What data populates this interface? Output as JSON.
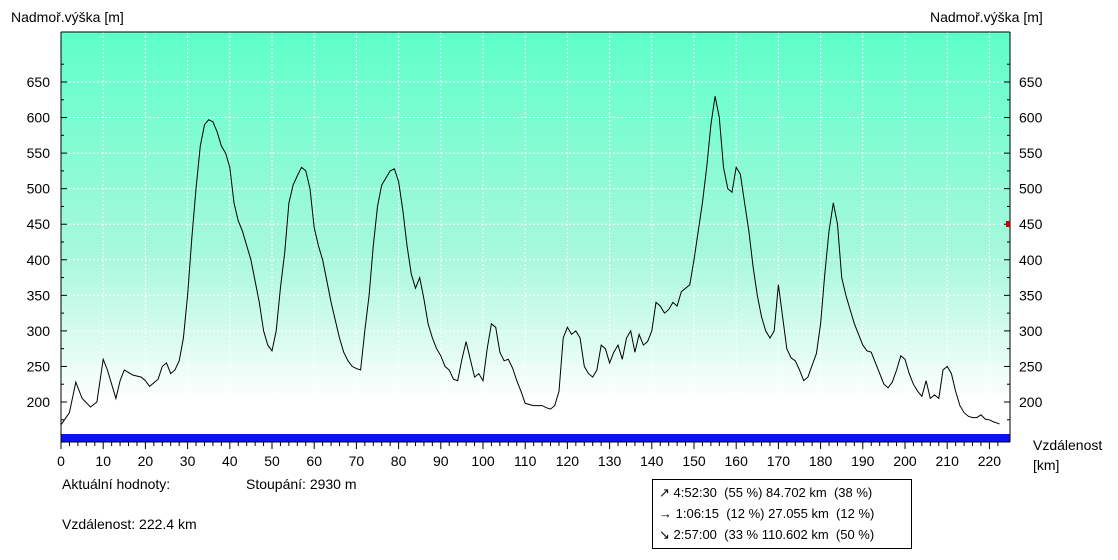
{
  "chart_data": {
    "type": "area",
    "ylabel_left": "Nadmoř.výška [m]",
    "ylabel_right": "Nadmoř.výška [m]",
    "xlabel": "Vzdálenost",
    "xunit": "[km]",
    "xlim": [
      0,
      222.4
    ],
    "ylim": [
      165,
      660
    ],
    "xticks": [
      0,
      10,
      20,
      30,
      40,
      50,
      60,
      70,
      80,
      90,
      100,
      110,
      120,
      130,
      140,
      150,
      160,
      170,
      180,
      190,
      200,
      210,
      220
    ],
    "yticks": [
      200,
      250,
      300,
      350,
      400,
      450,
      500,
      550,
      600,
      650
    ],
    "grid": true,
    "background_gradient": [
      "#5effc8",
      "#ffffff"
    ],
    "baseline_color": "#0a14f0",
    "series": [
      {
        "points": [
          [
            0,
            168
          ],
          [
            2,
            185
          ],
          [
            3.5,
            228
          ],
          [
            5,
            205
          ],
          [
            7,
            193
          ],
          [
            8.5,
            200
          ],
          [
            10,
            260
          ],
          [
            11,
            245
          ],
          [
            13,
            205
          ],
          [
            14,
            230
          ],
          [
            15,
            245
          ],
          [
            17,
            238
          ],
          [
            19,
            235
          ],
          [
            20,
            230
          ],
          [
            21,
            222
          ],
          [
            23,
            232
          ],
          [
            24,
            250
          ],
          [
            25,
            255
          ],
          [
            26,
            240
          ],
          [
            27,
            245
          ],
          [
            28,
            258
          ],
          [
            29,
            290
          ],
          [
            30,
            350
          ],
          [
            31,
            430
          ],
          [
            32,
            500
          ],
          [
            33,
            560
          ],
          [
            34,
            590
          ],
          [
            35,
            597
          ],
          [
            36,
            594
          ],
          [
            37,
            580
          ],
          [
            38,
            560
          ],
          [
            39,
            550
          ],
          [
            40,
            530
          ],
          [
            41,
            480
          ],
          [
            42,
            455
          ],
          [
            43,
            440
          ],
          [
            44,
            420
          ],
          [
            45,
            400
          ],
          [
            46,
            370
          ],
          [
            47,
            340
          ],
          [
            48,
            300
          ],
          [
            49,
            280
          ],
          [
            50,
            272
          ],
          [
            51,
            300
          ],
          [
            52,
            360
          ],
          [
            53,
            410
          ],
          [
            54,
            480
          ],
          [
            55,
            505
          ],
          [
            56,
            518
          ],
          [
            57,
            530
          ],
          [
            58,
            525
          ],
          [
            59,
            500
          ],
          [
            60,
            445
          ],
          [
            61,
            420
          ],
          [
            62,
            400
          ],
          [
            63,
            370
          ],
          [
            64,
            340
          ],
          [
            65,
            315
          ],
          [
            66,
            290
          ],
          [
            67,
            270
          ],
          [
            68,
            258
          ],
          [
            69,
            250
          ],
          [
            70,
            247
          ],
          [
            71,
            245
          ],
          [
            72,
            300
          ],
          [
            73,
            350
          ],
          [
            74,
            420
          ],
          [
            75,
            475
          ],
          [
            76,
            505
          ],
          [
            77,
            515
          ],
          [
            78,
            525
          ],
          [
            79,
            528
          ],
          [
            80,
            510
          ],
          [
            81,
            470
          ],
          [
            82,
            420
          ],
          [
            83,
            380
          ],
          [
            84,
            360
          ],
          [
            85,
            375
          ],
          [
            86,
            345
          ],
          [
            87,
            310
          ],
          [
            88,
            290
          ],
          [
            89,
            275
          ],
          [
            90,
            265
          ],
          [
            91,
            250
          ],
          [
            92,
            245
          ],
          [
            93,
            232
          ],
          [
            94,
            230
          ],
          [
            95,
            260
          ],
          [
            96,
            285
          ],
          [
            97,
            260
          ],
          [
            98,
            235
          ],
          [
            99,
            240
          ],
          [
            100,
            230
          ],
          [
            101,
            275
          ],
          [
            102,
            310
          ],
          [
            103,
            305
          ],
          [
            104,
            270
          ],
          [
            105,
            258
          ],
          [
            106,
            260
          ],
          [
            107,
            248
          ],
          [
            108,
            230
          ],
          [
            109,
            215
          ],
          [
            110,
            198
          ],
          [
            112,
            195
          ],
          [
            114,
            195
          ],
          [
            115,
            192
          ],
          [
            116,
            190
          ],
          [
            117,
            195
          ],
          [
            118,
            215
          ],
          [
            119,
            290
          ],
          [
            120,
            305
          ],
          [
            121,
            295
          ],
          [
            122,
            300
          ],
          [
            123,
            290
          ],
          [
            124,
            250
          ],
          [
            125,
            240
          ],
          [
            126,
            235
          ],
          [
            127,
            245
          ],
          [
            128,
            280
          ],
          [
            129,
            275
          ],
          [
            130,
            255
          ],
          [
            131,
            270
          ],
          [
            132,
            280
          ],
          [
            133,
            260
          ],
          [
            134,
            290
          ],
          [
            135,
            300
          ],
          [
            136,
            270
          ],
          [
            137,
            295
          ],
          [
            138,
            280
          ],
          [
            139,
            285
          ],
          [
            140,
            300
          ],
          [
            141,
            340
          ],
          [
            142,
            335
          ],
          [
            143,
            325
          ],
          [
            144,
            330
          ],
          [
            145,
            340
          ],
          [
            146,
            335
          ],
          [
            147,
            355
          ],
          [
            148,
            360
          ],
          [
            149,
            365
          ],
          [
            150,
            400
          ],
          [
            151,
            440
          ],
          [
            152,
            480
          ],
          [
            153,
            530
          ],
          [
            154,
            590
          ],
          [
            155,
            630
          ],
          [
            156,
            600
          ],
          [
            157,
            530
          ],
          [
            158,
            500
          ],
          [
            159,
            495
          ],
          [
            160,
            530
          ],
          [
            161,
            520
          ],
          [
            162,
            480
          ],
          [
            163,
            440
          ],
          [
            164,
            390
          ],
          [
            165,
            350
          ],
          [
            166,
            320
          ],
          [
            167,
            300
          ],
          [
            168,
            290
          ],
          [
            169,
            300
          ],
          [
            170,
            365
          ],
          [
            171,
            320
          ],
          [
            172,
            275
          ],
          [
            173,
            262
          ],
          [
            174,
            258
          ],
          [
            175,
            245
          ],
          [
            176,
            230
          ],
          [
            177,
            235
          ],
          [
            178,
            252
          ],
          [
            179,
            268
          ],
          [
            180,
            310
          ],
          [
            181,
            380
          ],
          [
            182,
            440
          ],
          [
            183,
            480
          ],
          [
            184,
            450
          ],
          [
            185,
            375
          ],
          [
            186,
            350
          ],
          [
            187,
            330
          ],
          [
            188,
            310
          ],
          [
            189,
            295
          ],
          [
            190,
            280
          ],
          [
            191,
            272
          ],
          [
            192,
            270
          ],
          [
            193,
            255
          ],
          [
            194,
            240
          ],
          [
            195,
            225
          ],
          [
            196,
            220
          ],
          [
            197,
            228
          ],
          [
            198,
            245
          ],
          [
            199,
            265
          ],
          [
            200,
            260
          ],
          [
            201,
            240
          ],
          [
            202,
            225
          ],
          [
            203,
            215
          ],
          [
            204,
            208
          ],
          [
            205,
            230
          ],
          [
            206,
            205
          ],
          [
            207,
            210
          ],
          [
            208,
            205
          ],
          [
            209,
            245
          ],
          [
            210,
            250
          ],
          [
            211,
            240
          ],
          [
            212,
            215
          ],
          [
            213,
            195
          ],
          [
            214,
            185
          ],
          [
            215,
            180
          ],
          [
            216,
            178
          ],
          [
            217,
            178
          ],
          [
            218,
            182
          ],
          [
            219,
            176
          ],
          [
            220,
            175
          ],
          [
            221,
            172
          ],
          [
            222,
            170
          ],
          [
            222.4,
            169
          ]
        ]
      }
    ]
  },
  "info": {
    "current_label": "Aktuální hodnoty:",
    "ascent_label": "Stoupání: 2930 m",
    "distance_label": "Vzdálenost: 222.4 km"
  },
  "stats": [
    {
      "icon": "arrow-up-right-icon",
      "glyph": "↗",
      "text": "4:52:30  (55 %) 84.702 km  (38 %)"
    },
    {
      "icon": "arrow-right-icon",
      "glyph": "→",
      "text": "1:06:15  (12 %) 27.055 km  (12 %)"
    },
    {
      "icon": "arrow-down-right-icon",
      "glyph": "↘",
      "text": "2:57:00  (33 % 110.602 km  (50 %)"
    }
  ]
}
